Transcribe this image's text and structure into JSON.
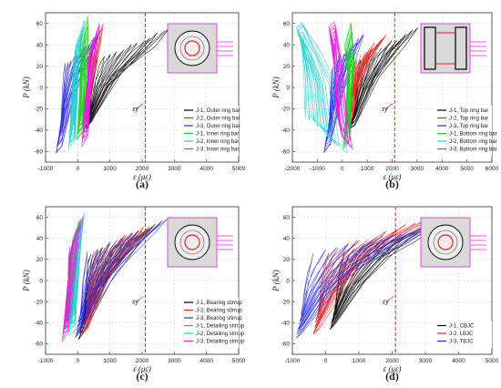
{
  "chart_data": [
    {
      "type": "line",
      "panel": "(a)",
      "xlabel": "ε (με)",
      "ylabel": "P (kN)",
      "xlim": [
        -1000,
        5000
      ],
      "ylim": [
        -70,
        70
      ],
      "xticks": [
        "-1000",
        "0",
        "1000",
        "2000",
        "3000",
        "4000",
        "5000"
      ],
      "yticks": [
        "-60",
        "-40",
        "-20",
        "0",
        "20",
        "40",
        "60"
      ],
      "grid": true,
      "yield_line": {
        "x": 2100,
        "label": "εy"
      },
      "legend_position": "right",
      "series": [
        {
          "name": "J-1, Outer ring bar",
          "color": "#000000",
          "x": [
            400,
            1400,
            2400,
            2900
          ],
          "y": [
            -35,
            15,
            40,
            55
          ]
        },
        {
          "name": "J-2, Outer ring bar",
          "color": "#e8231f",
          "x": [
            300,
            500,
            700,
            800
          ],
          "y": [
            -30,
            10,
            40,
            58
          ]
        },
        {
          "name": "J-3, Outer ring bar",
          "color": "#2a2ae0",
          "x": [
            -500,
            -100,
            400,
            700
          ],
          "y": [
            -55,
            -10,
            30,
            50
          ]
        },
        {
          "name": "J-1, Inner ring bar",
          "color": "#22cc22",
          "x": [
            150,
            250,
            320,
            300
          ],
          "y": [
            -42,
            0,
            45,
            65
          ]
        },
        {
          "name": "J-2, Inner ring bar",
          "color": "#20d0d0",
          "x": [
            -100,
            0,
            80,
            200
          ],
          "y": [
            -50,
            -5,
            35,
            62
          ]
        },
        {
          "name": "J-3, Inner ring bar",
          "color": "#e020e0",
          "x": [
            300,
            450,
            600,
            700
          ],
          "y": [
            -48,
            0,
            40,
            60
          ]
        }
      ]
    },
    {
      "type": "line",
      "panel": "(b)",
      "xlabel": "ε (με)",
      "ylabel": "P (kN)",
      "xlim": [
        -2000,
        6000
      ],
      "ylim": [
        -70,
        70
      ],
      "xticks": [
        "-2000",
        "-1000",
        "0",
        "1000",
        "2000",
        "3000",
        "4000",
        "5000",
        "6000"
      ],
      "yticks": [
        "-60",
        "-40",
        "-20",
        "0",
        "20",
        "40",
        "60"
      ],
      "grid": true,
      "yield_line": {
        "x": 2100,
        "label": "εy"
      },
      "legend_position": "right",
      "series": [
        {
          "name": "J-1, Top ring bar",
          "color": "#000000",
          "x": [
            500,
            1500,
            2500,
            3000
          ],
          "y": [
            -35,
            10,
            40,
            55
          ]
        },
        {
          "name": "J-2, Top ring bar",
          "color": "#e8231f",
          "x": [
            400,
            700,
            1200,
            1800
          ],
          "y": [
            -30,
            0,
            30,
            50
          ]
        },
        {
          "name": "J-3, Top ring bar",
          "color": "#2a2ae0",
          "x": [
            -500,
            0,
            500,
            900
          ],
          "y": [
            -55,
            -10,
            25,
            50
          ]
        },
        {
          "name": "J-1, Bottom ring bar",
          "color": "#22cc22",
          "x": [
            300,
            400,
            500,
            350
          ],
          "y": [
            -50,
            -10,
            30,
            62
          ]
        },
        {
          "name": "J-2, Bottom ring bar",
          "color": "#20d0d0",
          "x": [
            -1600,
            -800,
            -200,
            200
          ],
          "y": [
            62,
            30,
            0,
            -60
          ]
        },
        {
          "name": "J-3, Bottom ring bar",
          "color": "#e020e0",
          "x": [
            -300,
            0,
            200,
            400
          ],
          "y": [
            62,
            20,
            -20,
            -60
          ]
        }
      ]
    },
    {
      "type": "line",
      "panel": "(c)",
      "xlabel": "ε (με)",
      "ylabel": "P (kN)",
      "xlim": [
        -1000,
        5000
      ],
      "ylim": [
        -70,
        70
      ],
      "xticks": [
        "-1000",
        "0",
        "1000",
        "2000",
        "3000",
        "4000",
        "5000"
      ],
      "yticks": [
        "-60",
        "-40",
        "-20",
        "0",
        "20",
        "40",
        "60"
      ],
      "grid": true,
      "yield_line": {
        "x": 2100,
        "label": "εy"
      },
      "legend_position": "right",
      "series": [
        {
          "name": "J-1, Bearing stirrup",
          "color": "#000000",
          "x": [
            200,
            1000,
            2000,
            2600
          ],
          "y": [
            -50,
            0,
            40,
            55
          ]
        },
        {
          "name": "J-2, Bearing stirrup",
          "color": "#e8231f",
          "x": [
            300,
            1000,
            2000,
            2400
          ],
          "y": [
            -45,
            5,
            40,
            55
          ]
        },
        {
          "name": "J-3, Bearing stirrup",
          "color": "#2a2ae0",
          "x": [
            100,
            1200,
            2400,
            2800
          ],
          "y": [
            -48,
            10,
            45,
            58
          ]
        },
        {
          "name": "J-1, Detailing stirrup",
          "color": "#22cc22",
          "x": [
            -200,
            -100,
            0,
            100
          ],
          "y": [
            -40,
            0,
            40,
            60
          ]
        },
        {
          "name": "J-2, Detailing stirrup",
          "color": "#20d0d0",
          "x": [
            -100,
            0,
            100,
            200
          ],
          "y": [
            -45,
            -5,
            35,
            62
          ]
        },
        {
          "name": "J-3, Detailing stirrup",
          "color": "#e020e0",
          "x": [
            -300,
            -150,
            0,
            150
          ],
          "y": [
            -50,
            -10,
            30,
            60
          ]
        }
      ]
    },
    {
      "type": "line",
      "panel": "(d)",
      "xlabel": "ε (με)",
      "ylabel": "P (kN)",
      "xlim": [
        -1000,
        5000
      ],
      "ylim": [
        -70,
        70
      ],
      "xticks": [
        "-1000",
        "0",
        "1000",
        "2000",
        "3000",
        "4000",
        "5000"
      ],
      "yticks": [
        "-60",
        "-40",
        "-20",
        "0",
        "20",
        "40",
        "60"
      ],
      "grid": true,
      "yield_line": {
        "x": 2100,
        "label": "εy"
      },
      "legend_position": "right",
      "series": [
        {
          "name": "J-1, CBJC",
          "color": "#000000",
          "x": [
            300,
            1200,
            2500,
            3700
          ],
          "y": [
            -40,
            0,
            40,
            58
          ]
        },
        {
          "name": "J-2, LBJC",
          "color": "#e8231f",
          "x": [
            -200,
            800,
            2000,
            3300
          ],
          "y": [
            -45,
            5,
            40,
            60
          ]
        },
        {
          "name": "J-3, TBJC",
          "color": "#2a2ae0",
          "x": [
            -700,
            500,
            2000,
            3500
          ],
          "y": [
            -48,
            0,
            35,
            55
          ]
        }
      ]
    }
  ]
}
